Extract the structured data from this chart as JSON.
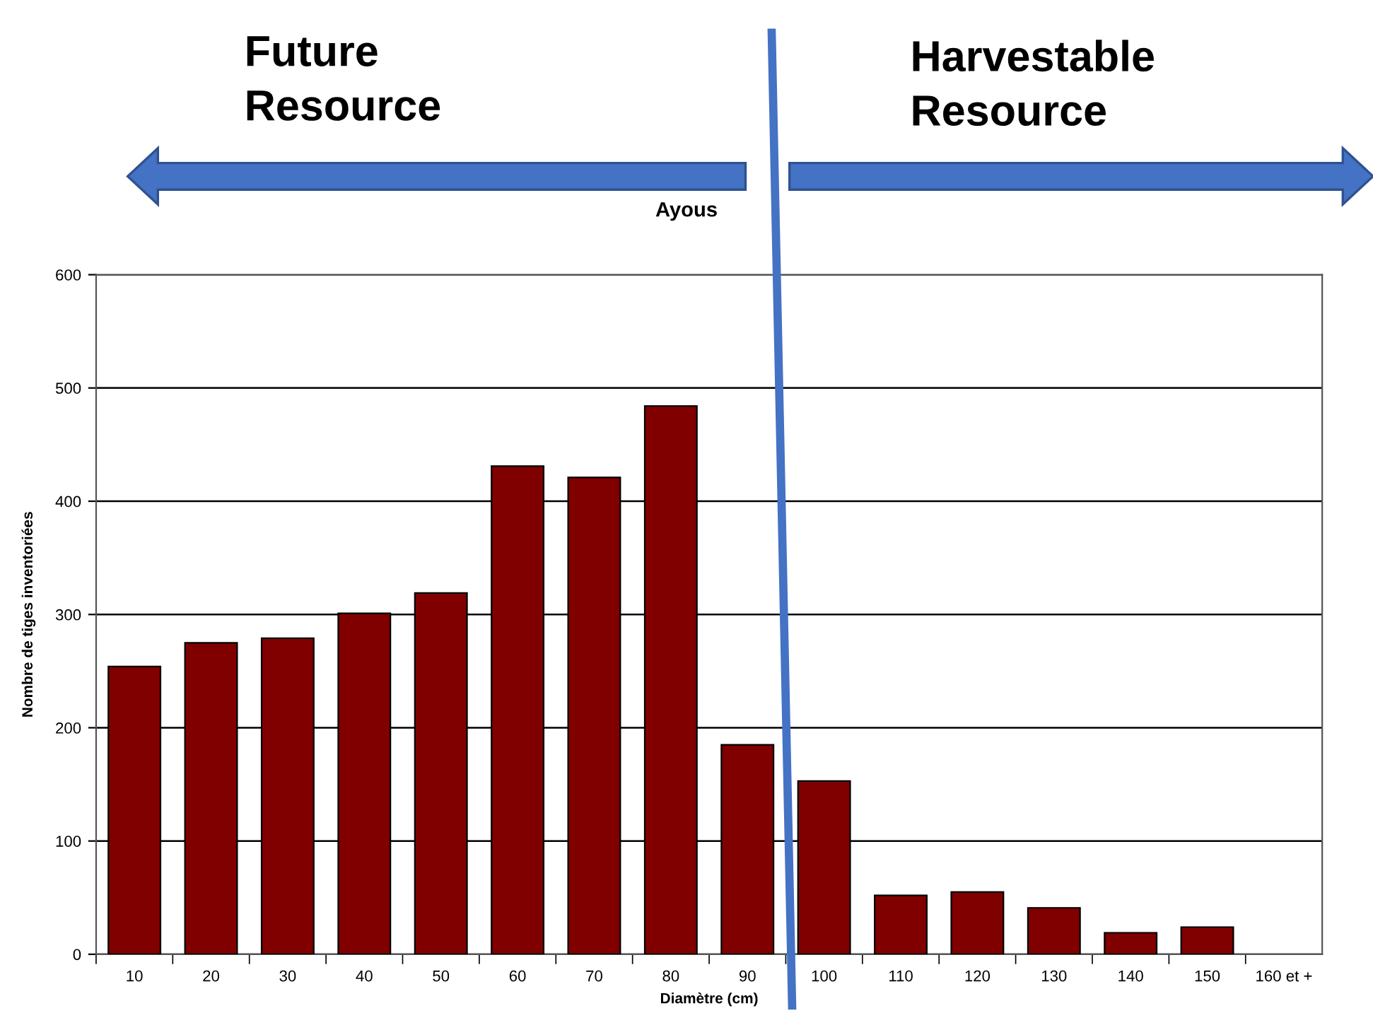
{
  "chart_data": {
    "type": "bar",
    "title": "Ayous",
    "xlabel": "Diamètre (cm)",
    "ylabel": "Nombre de tiges inventoriées",
    "categories": [
      "10",
      "20",
      "30",
      "40",
      "50",
      "60",
      "70",
      "80",
      "90",
      "100",
      "110",
      "120",
      "130",
      "140",
      "150",
      "160 et +"
    ],
    "values": [
      254,
      275,
      279,
      301,
      319,
      431,
      421,
      484,
      185,
      153,
      52,
      55,
      41,
      19,
      24,
      0
    ],
    "color": "#800000",
    "ylim": [
      0,
      600
    ],
    "yticks": [
      0,
      100,
      200,
      300,
      400,
      500,
      600
    ],
    "grid": "y",
    "legend": false,
    "annotations": [
      "Future\nResource",
      "Harvestable\nResource"
    ]
  }
}
